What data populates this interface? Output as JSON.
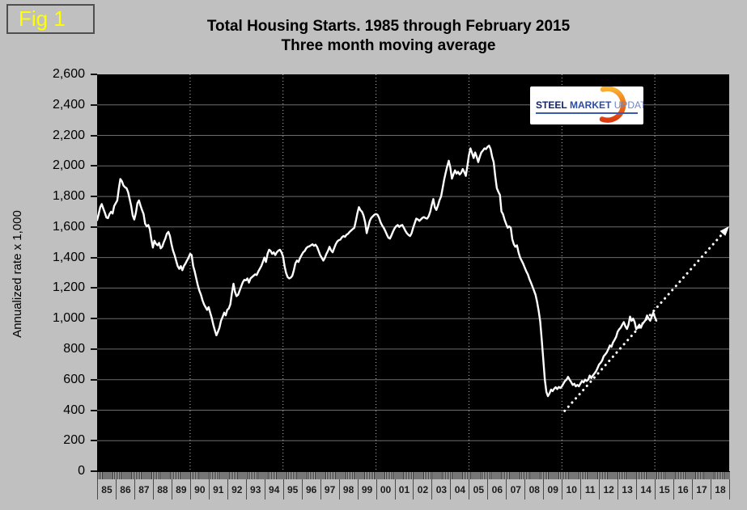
{
  "figure_label": "Fig 1",
  "title_line1": "Total Housing Starts. 1985 through February 2015",
  "title_line2": "Three month moving average",
  "y_axis_title": "Annualized rate x 1,000",
  "logo": {
    "word1": "STEEL",
    "word2": "MARKET",
    "word3": "UPDATE"
  },
  "colors": {
    "page_bg": "#c0c0c0",
    "plot_bg": "#000000",
    "series_line": "#ffffff",
    "trend_line": "#ffffff",
    "grid_horizontal": "#6e6e6e",
    "grid_vertical": "#bdbdbd",
    "fig_label": "#ffff00",
    "logo_orange_top": "#f9b234",
    "logo_orange_mid": "#f07818",
    "logo_orange_bottom": "#dd3a10"
  },
  "chart_data": {
    "type": "line",
    "title": "Total Housing Starts. 1985 through February 2015",
    "subtitle": "Three month moving average",
    "xlabel": "",
    "ylabel": "Annualized rate x 1,000",
    "ylim": [
      0,
      2600
    ],
    "y_tick_step": 200,
    "y_tick_labels": [
      "0",
      "200",
      "400",
      "600",
      "800",
      "1,000",
      "1,200",
      "1,400",
      "1,600",
      "1,800",
      "2,000",
      "2,200",
      "2,400",
      "2,600"
    ],
    "x_range_years": [
      1985,
      2019
    ],
    "x_tick_labels": [
      "85",
      "86",
      "87",
      "88",
      "89",
      "90",
      "91",
      "92",
      "93",
      "94",
      "95",
      "96",
      "97",
      "98",
      "99",
      "00",
      "01",
      "02",
      "03",
      "04",
      "05",
      "06",
      "07",
      "08",
      "09",
      "10",
      "11",
      "12",
      "13",
      "14",
      "15",
      "16",
      "17",
      "18"
    ],
    "grid_vertical_years": [
      1990,
      1995,
      2000,
      2005,
      2010,
      2015
    ],
    "grid": true,
    "legend_position": "none",
    "series": [
      {
        "name": "Total housing starts, 3-month moving average (annualized, thousands)",
        "start_year": 1985,
        "points_per_year": 12,
        "end_label": "February 2015",
        "values": [
          1645,
          1685,
          1729,
          1750,
          1720,
          1693,
          1662,
          1658,
          1685,
          1700,
          1688,
          1738,
          1756,
          1774,
          1850,
          1914,
          1900,
          1872,
          1860,
          1854,
          1828,
          1783,
          1738,
          1675,
          1649,
          1693,
          1756,
          1774,
          1740,
          1711,
          1685,
          1622,
          1604,
          1613,
          1586,
          1520,
          1465,
          1510,
          1490,
          1480,
          1496,
          1460,
          1470,
          1500,
          1523,
          1555,
          1568,
          1540,
          1487,
          1445,
          1416,
          1380,
          1344,
          1326,
          1344,
          1317,
          1344,
          1360,
          1380,
          1398,
          1424,
          1416,
          1344,
          1308,
          1263,
          1219,
          1183,
          1156,
          1120,
          1093,
          1075,
          1057,
          1075,
          1039,
          1003,
          959,
          923,
          890,
          914,
          941,
          986,
          1012,
          1039,
          1021,
          1057,
          1066,
          1093,
          1165,
          1228,
          1174,
          1147,
          1156,
          1183,
          1210,
          1237,
          1254,
          1250,
          1263,
          1236,
          1263,
          1272,
          1281,
          1290,
          1285,
          1308,
          1326,
          1344,
          1371,
          1400,
          1371,
          1424,
          1451,
          1443,
          1424,
          1434,
          1416,
          1434,
          1445,
          1451,
          1434,
          1407,
          1344,
          1299,
          1272,
          1263,
          1268,
          1281,
          1317,
          1362,
          1380,
          1371,
          1398,
          1416,
          1434,
          1443,
          1461,
          1470,
          1473,
          1480,
          1487,
          1477,
          1484,
          1470,
          1443,
          1416,
          1398,
          1380,
          1398,
          1424,
          1443,
          1470,
          1448,
          1434,
          1461,
          1487,
          1505,
          1514,
          1517,
          1532,
          1541,
          1535,
          1550,
          1555,
          1568,
          1577,
          1586,
          1595,
          1640,
          1690,
          1730,
          1710,
          1700,
          1675,
          1630,
          1560,
          1600,
          1640,
          1660,
          1670,
          1680,
          1685,
          1680,
          1660,
          1630,
          1610,
          1595,
          1575,
          1550,
          1530,
          1524,
          1545,
          1570,
          1590,
          1605,
          1613,
          1600,
          1610,
          1613,
          1595,
          1575,
          1559,
          1548,
          1541,
          1560,
          1595,
          1625,
          1655,
          1650,
          1640,
          1650,
          1660,
          1665,
          1658,
          1655,
          1670,
          1700,
          1745,
          1783,
          1729,
          1712,
          1740,
          1775,
          1800,
          1854,
          1910,
          1955,
          1998,
          2034,
          1990,
          1917,
          1945,
          1971,
          1950,
          1962,
          1944,
          1955,
          1980,
          1960,
          1935,
          2000,
          2070,
          2115,
          2085,
          2052,
          2088,
          2060,
          2025,
          2060,
          2088,
          2100,
          2115,
          2110,
          2125,
          2133,
          2110,
          2060,
          2025,
          1930,
          1854,
          1830,
          1810,
          1702,
          1684,
          1649,
          1620,
          1595,
          1604,
          1595,
          1520,
          1487,
          1470,
          1480,
          1434,
          1400,
          1380,
          1360,
          1335,
          1310,
          1290,
          1260,
          1236,
          1210,
          1183,
          1156,
          1110,
          1050,
          980,
          860,
          730,
          600,
          520,
          492,
          510,
          535,
          525,
          540,
          550,
          538,
          552,
          545,
          556,
          574,
          591,
          600,
          618,
          600,
          583,
          565,
          573,
          556,
          565,
          556,
          574,
          591,
          582,
          600,
          591,
          600,
          627,
          610,
          627,
          640,
          654,
          675,
          699,
          710,
          725,
          753,
          765,
          779,
          800,
          824,
          815,
          843,
          860,
          880,
          914,
          930,
          941,
          960,
          977,
          950,
          932,
          960,
          1013,
          985,
          1000,
          977,
          930,
          945,
          960,
          940,
          965,
          977,
          990,
          1020,
          1000,
          986,
          1013,
          1039,
          1010,
          986
        ]
      }
    ],
    "trend_line": {
      "style": "dotted-with-arrowhead",
      "start": {
        "year": 2010.15,
        "value": 395
      },
      "end": {
        "year": 2018.85,
        "value": 1585
      }
    }
  }
}
